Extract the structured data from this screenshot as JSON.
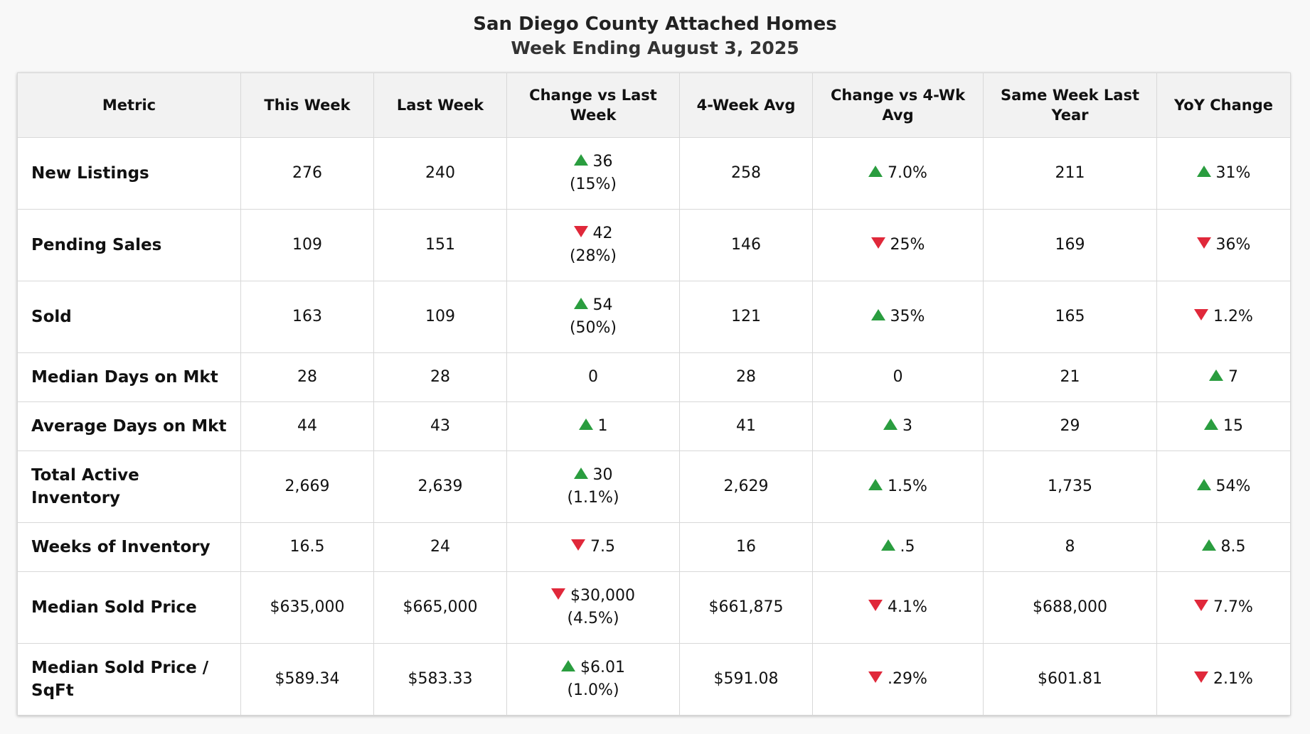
{
  "title": "San Diego County Attached Homes",
  "subtitle": "Week Ending August 3, 2025",
  "colors": {
    "up": "#2a9d3f",
    "down": "#e0283a",
    "header_bg": "#f2f2f2"
  },
  "headers": [
    "Metric",
    "This Week",
    "Last Week",
    "Change vs Last Week",
    "4-Week Avg",
    "Change vs 4-Wk Avg",
    "Same Week Last Year",
    "YoY Change"
  ],
  "rows": [
    {
      "metric": "New Listings",
      "this_week": "276",
      "last_week": "240",
      "chg_last_dir": "up",
      "chg_last_line1": "36",
      "chg_last_line2": "(15%)",
      "avg4": "258",
      "chg_avg_dir": "up",
      "chg_avg": "7.0%",
      "last_year": "211",
      "yoy_dir": "up",
      "yoy": "31%"
    },
    {
      "metric": "Pending Sales",
      "this_week": "109",
      "last_week": "151",
      "chg_last_dir": "down",
      "chg_last_line1": "42",
      "chg_last_line2": "(28%)",
      "avg4": "146",
      "chg_avg_dir": "down",
      "chg_avg": "25%",
      "last_year": "169",
      "yoy_dir": "down",
      "yoy": "36%"
    },
    {
      "metric": "Sold",
      "this_week": "163",
      "last_week": "109",
      "chg_last_dir": "up",
      "chg_last_line1": "54",
      "chg_last_line2": "(50%)",
      "avg4": "121",
      "chg_avg_dir": "up",
      "chg_avg": "35%",
      "last_year": "165",
      "yoy_dir": "down",
      "yoy": "1.2%"
    },
    {
      "metric": "Median Days on Mkt",
      "this_week": "28",
      "last_week": "28",
      "chg_last_dir": "none",
      "chg_last_line1": "0",
      "chg_last_line2": "",
      "avg4": "28",
      "chg_avg_dir": "none",
      "chg_avg": "0",
      "last_year": "21",
      "yoy_dir": "up",
      "yoy": "7"
    },
    {
      "metric": "Average Days on Mkt",
      "this_week": "44",
      "last_week": "43",
      "chg_last_dir": "up",
      "chg_last_line1": "1",
      "chg_last_line2": "",
      "avg4": "41",
      "chg_avg_dir": "up",
      "chg_avg": "3",
      "last_year": "29",
      "yoy_dir": "up",
      "yoy": "15"
    },
    {
      "metric": "Total Active Inventory",
      "this_week": "2,669",
      "last_week": "2,639",
      "chg_last_dir": "up",
      "chg_last_line1": "30",
      "chg_last_line2": "(1.1%)",
      "avg4": "2,629",
      "chg_avg_dir": "up",
      "chg_avg": "1.5%",
      "last_year": "1,735",
      "yoy_dir": "up",
      "yoy": "54%"
    },
    {
      "metric": "Weeks of Inventory",
      "this_week": "16.5",
      "last_week": "24",
      "chg_last_dir": "down",
      "chg_last_line1": "7.5",
      "chg_last_line2": "",
      "avg4": "16",
      "chg_avg_dir": "up",
      "chg_avg": ".5",
      "last_year": "8",
      "yoy_dir": "up",
      "yoy": "8.5"
    },
    {
      "metric": "Median Sold Price",
      "this_week": "$635,000",
      "last_week": "$665,000",
      "chg_last_dir": "down",
      "chg_last_line1": "$30,000",
      "chg_last_line2": "(4.5%)",
      "avg4": "$661,875",
      "chg_avg_dir": "down",
      "chg_avg": "4.1%",
      "last_year": "$688,000",
      "yoy_dir": "down",
      "yoy": "7.7%"
    },
    {
      "metric": "Median Sold Price / SqFt",
      "this_week": "$589.34",
      "last_week": "$583.33",
      "chg_last_dir": "up",
      "chg_last_line1": "$6.01",
      "chg_last_line2": "(1.0%)",
      "avg4": "$591.08",
      "chg_avg_dir": "down",
      "chg_avg": ".29%",
      "last_year": "$601.81",
      "yoy_dir": "down",
      "yoy": "2.1%"
    }
  ]
}
